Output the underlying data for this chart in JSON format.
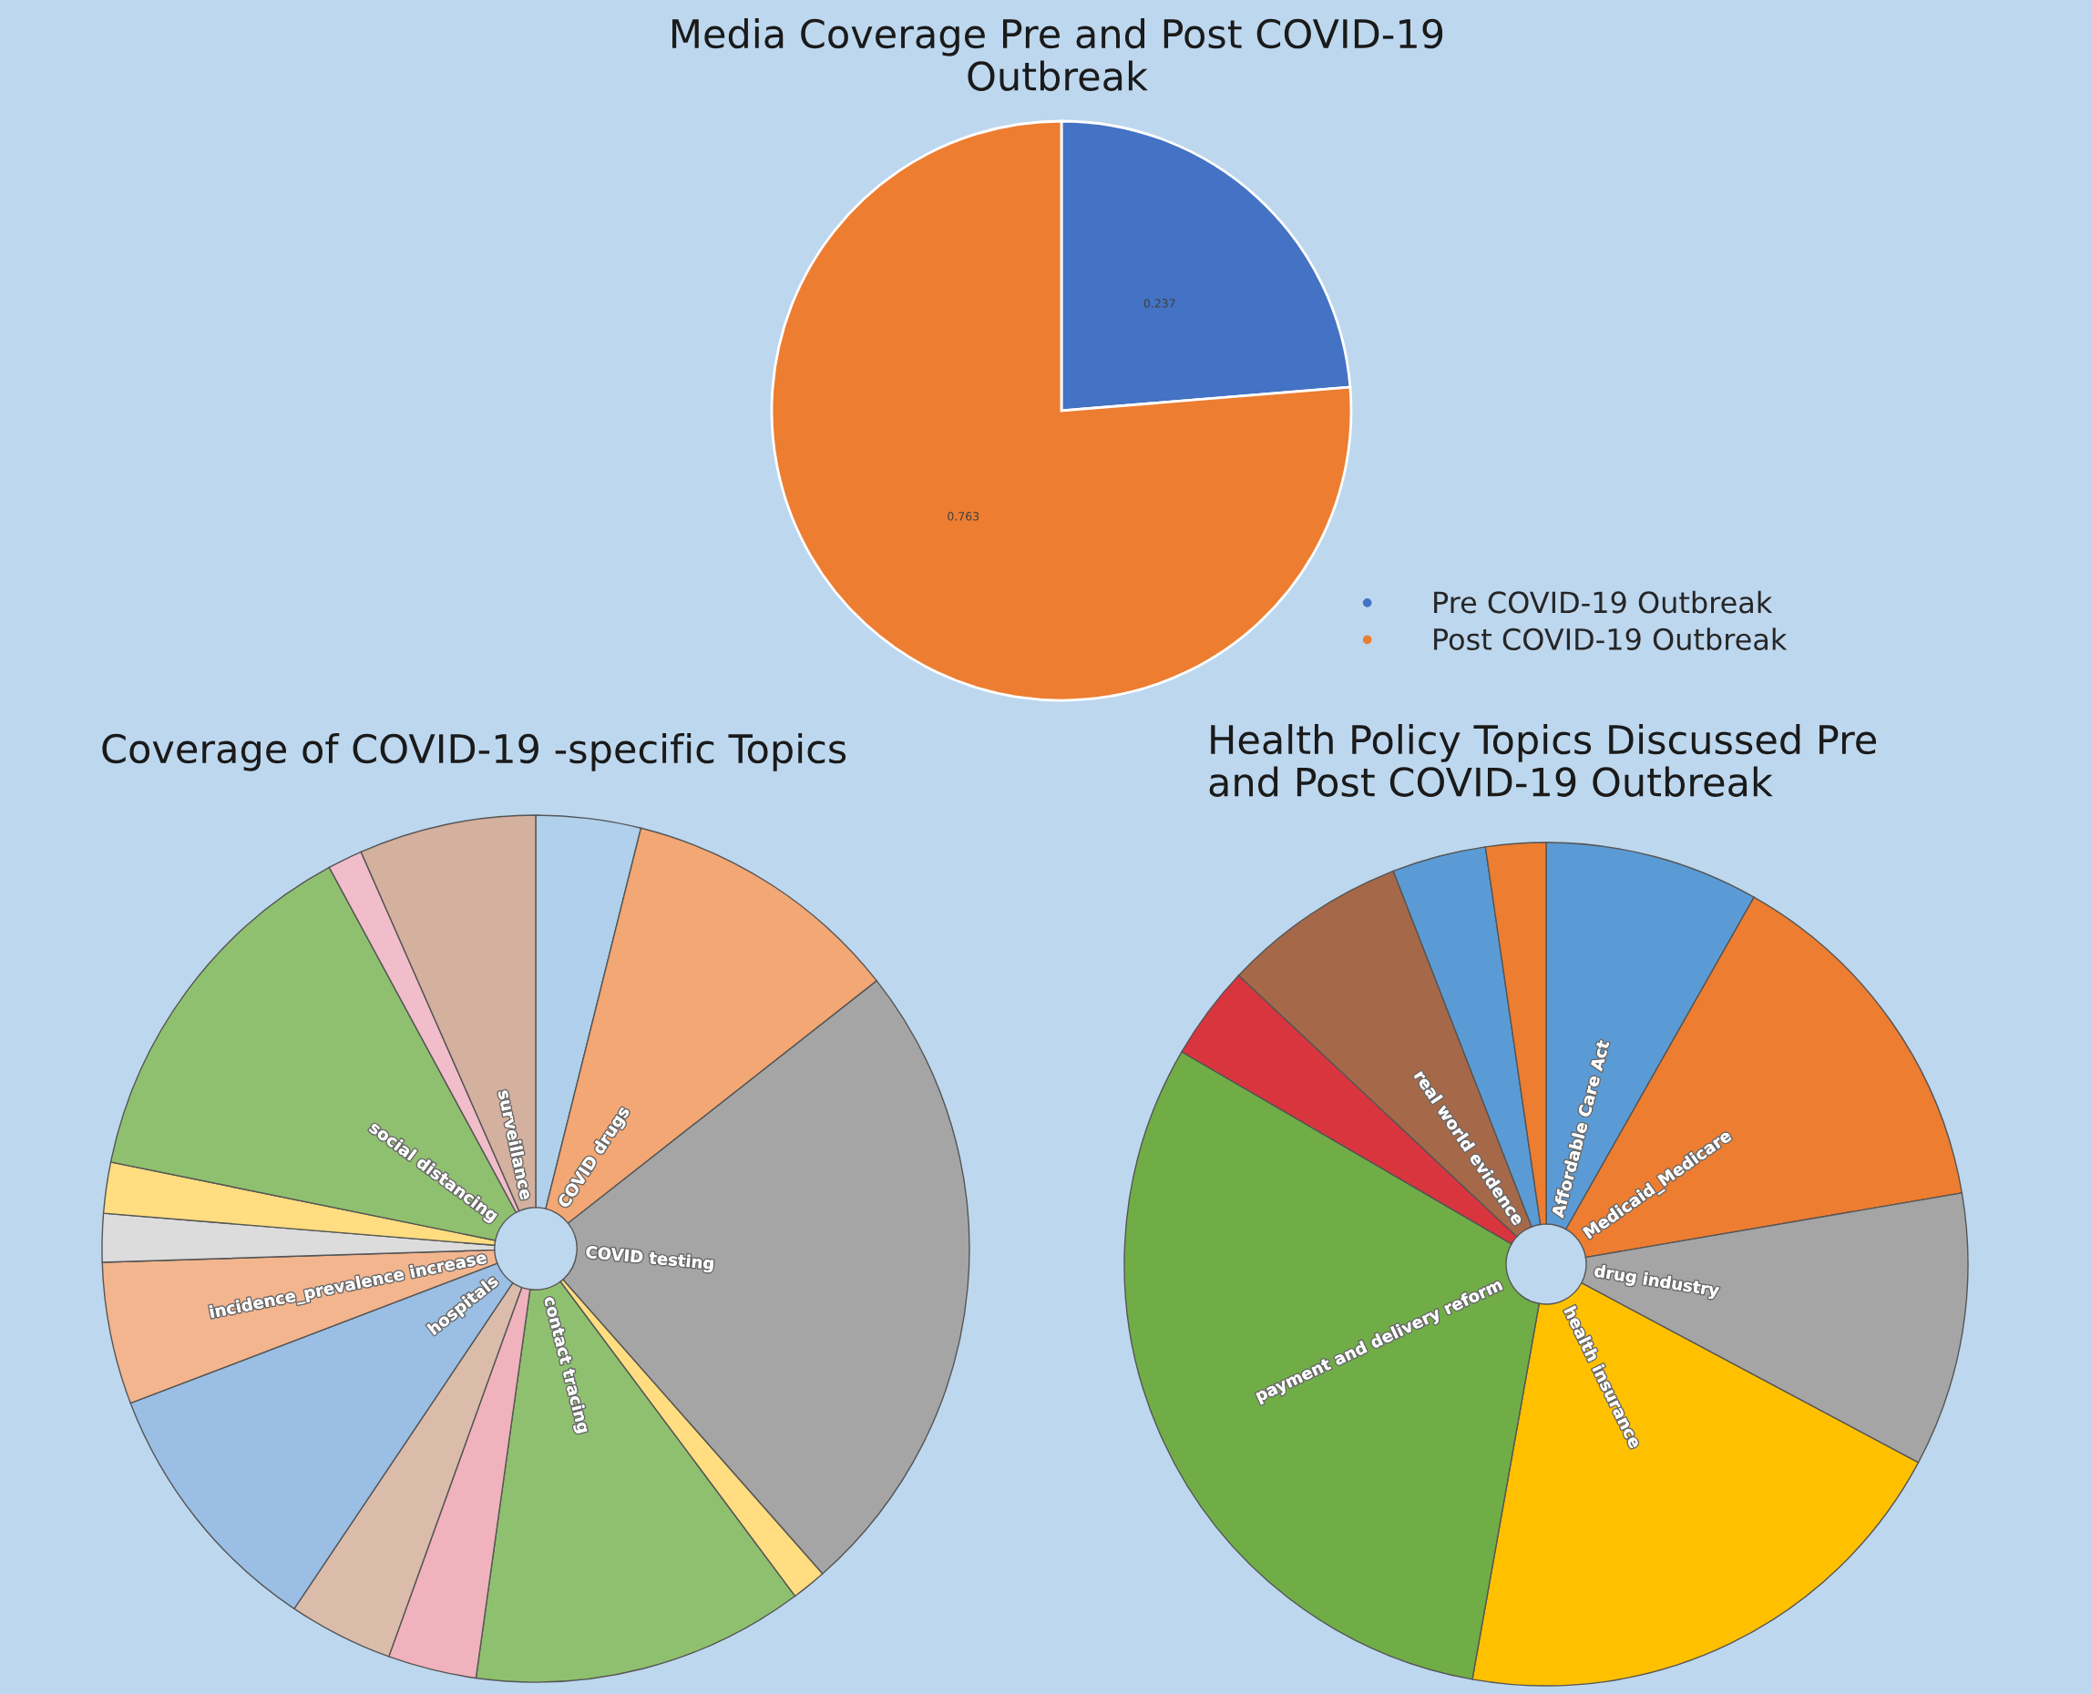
{
  "chart_data": [
    {
      "type": "pie",
      "title": "Media Coverage Pre and Post COVID-19\nOutbreak",
      "categories": [
        "Pre COVID-19 Outbreak",
        "Post COVID-19 Outbreak"
      ],
      "values": [
        0.237,
        0.763
      ],
      "colors": [
        "#4472c4",
        "#ed7d31"
      ],
      "data_labels": true,
      "legend": "bottom right"
    },
    {
      "type": "pie",
      "title": "Coverage of COVID-19 -specific Topics",
      "categories": [
        null,
        "COVID drugs",
        "COVID testing",
        null,
        "contact tracing",
        null,
        null,
        "hospitals",
        "incidence_prevalence increase",
        null,
        null,
        "social distancing",
        null,
        "surveillance"
      ],
      "values": [
        3.9,
        10.5,
        24.1,
        1.3,
        12.4,
        3.3,
        3.9,
        9.8,
        5.3,
        1.8,
        1.9,
        13.9,
        1.3,
        6.6
      ],
      "colors": [
        "#b0d0ec",
        "#f2a774",
        "#a5a5a5",
        "#ffdd80",
        "#8fc06f",
        "#f0b2bc",
        "#dbbcaa",
        "#9abee4",
        "#f3b58e",
        "#dcdcdc",
        "#ffdd80",
        "#8fc06f",
        "#f2bdcb",
        "#d4b09e"
      ]
    },
    {
      "type": "pie",
      "title": "Health Policy Topics Discussed Pre\nand Post COVID-19 Outbreak",
      "categories": [
        "Affordable Care Act",
        "Medicaid_Medicare",
        "drug industry",
        "health insurance",
        "payment and delivery reform",
        null,
        "real world evidence",
        null,
        null
      ],
      "values": [
        8.2,
        14.1,
        10.5,
        20.0,
        30.6,
        3.6,
        7.1,
        3.6,
        2.3
      ],
      "colors": [
        "#5b9bd5",
        "#ed7d31",
        "#a5a5a5",
        "#ffc000",
        "#70ad47",
        "#d9353f",
        "#a5694a",
        "#5b9bd5",
        "#ed7d31"
      ]
    }
  ]
}
